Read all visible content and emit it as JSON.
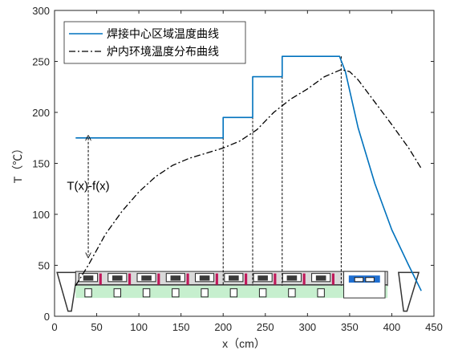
{
  "chart_data": {
    "type": "line",
    "xlabel": "x（cm）",
    "ylabel": "T（℃）",
    "xlim": [
      0,
      450
    ],
    "ylim": [
      0,
      300
    ],
    "xticks": [
      0,
      50,
      100,
      150,
      200,
      250,
      300,
      350,
      400,
      450
    ],
    "yticks": [
      0,
      50,
      100,
      150,
      200,
      250,
      300
    ],
    "grid": false,
    "legend": "top-left",
    "series": [
      {
        "name": "焊接中心区域温度曲线",
        "color": "#0072BD",
        "style": "solid",
        "x": [
          25,
          200,
          200,
          235,
          235,
          270,
          270,
          338,
          345,
          360,
          380,
          400,
          420,
          435
        ],
        "y": [
          175,
          175,
          195,
          195,
          235,
          235,
          255,
          255,
          240,
          185,
          130,
          85,
          50,
          25
        ]
      },
      {
        "name": "炉内环境温度分布曲线",
        "color": "#000000",
        "style": "dashdot",
        "x": [
          25,
          40,
          60,
          80,
          100,
          120,
          140,
          160,
          180,
          200,
          220,
          240,
          260,
          280,
          300,
          320,
          340,
          350,
          360,
          380,
          400,
          420,
          435
        ],
        "y": [
          30,
          50,
          80,
          103,
          122,
          137,
          148,
          155,
          160,
          165,
          172,
          183,
          200,
          213,
          223,
          235,
          242,
          240,
          232,
          210,
          188,
          165,
          145
        ]
      }
    ],
    "vlines": [
      {
        "x": 200,
        "y_top": 195
      },
      {
        "x": 235,
        "y_top": 235
      },
      {
        "x": 270,
        "y_top": 255
      },
      {
        "x": 340,
        "y_top": 255
      }
    ],
    "annotation": {
      "text": "T(x)-f(x)",
      "x": 40,
      "y_top": 175,
      "y_bottom": 60
    }
  }
}
